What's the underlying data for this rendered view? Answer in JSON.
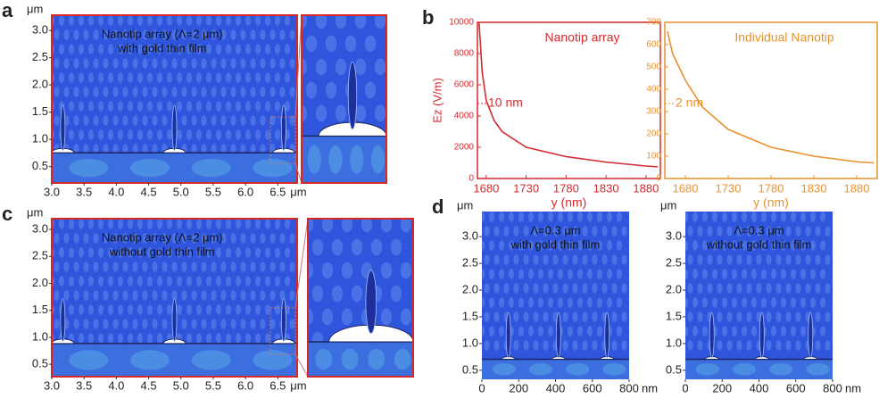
{
  "chart_data": [
    {
      "type": "field-map",
      "panel_label": "a",
      "annotation": [
        "Nanotip array (Λ=2 μm)",
        "with gold thin film"
      ],
      "ylabel": "μm",
      "xlabel": "μm",
      "xlim": [
        3.0,
        6.8
      ],
      "ylim": [
        0.2,
        3.28
      ],
      "xticks": [
        {
          "value": 3,
          "label": "3.0"
        },
        3.5,
        {
          "value": 4,
          "label": "4.0"
        },
        4.5,
        {
          "value": 5,
          "label": "5.0"
        },
        5.5,
        {
          "value": 6,
          "label": "6.0"
        },
        6.5
      ],
      "yticks": [
        0.5,
        {
          "value": 1,
          "label": "1.0"
        },
        1.5,
        {
          "value": 2,
          "label": "2.0"
        },
        2.5,
        {
          "value": 3,
          "label": "3.0"
        }
      ]
    },
    {
      "type": "field-map",
      "panel_label": "c",
      "annotation": [
        "Nanotip array (Λ=2 μm)",
        "without gold thin film"
      ],
      "ylabel": "μm",
      "xlabel": "μm",
      "xlim": [
        3.0,
        6.8
      ],
      "ylim": [
        0.27,
        3.2
      ],
      "xticks": [
        {
          "value": 3,
          "label": "3.0"
        },
        3.5,
        {
          "value": 4,
          "label": "4.0"
        },
        4.5,
        {
          "value": 5,
          "label": "5.0"
        },
        5.5,
        {
          "value": 6,
          "label": "6.0"
        },
        6.5
      ],
      "yticks": [
        0.5,
        {
          "value": 1,
          "label": "1.0"
        },
        1.5,
        {
          "value": 2,
          "label": "2.0"
        },
        2.5,
        {
          "value": 3,
          "label": "3.0"
        }
      ]
    },
    {
      "type": "field-map",
      "panel_label": "d",
      "annotation": [
        "Λ=0.3 μm",
        "with gold thin film"
      ],
      "ylabel": "μm",
      "xlabel": "nm",
      "xlim": [
        0,
        800
      ],
      "ylim": [
        0.33,
        3.47
      ],
      "xticks": [
        0,
        200,
        400,
        600,
        800
      ],
      "yticks": [
        0.5,
        {
          "value": 1,
          "label": "1.0"
        },
        1.5,
        {
          "value": 2,
          "label": "2.0"
        },
        2.5,
        {
          "value": 3,
          "label": "3.0"
        }
      ]
    },
    {
      "type": "field-map",
      "annotation": [
        "Λ=0.3 μm",
        "without gold thin film"
      ],
      "ylabel": "μm",
      "xlabel": "nm",
      "xlim": [
        0,
        800
      ],
      "ylim": [
        0.33,
        3.47
      ],
      "xticks": [
        0,
        200,
        400,
        600,
        800
      ],
      "yticks": [
        0.5,
        {
          "value": 1,
          "label": "1.0"
        },
        1.5,
        {
          "value": 2,
          "label": "2.0"
        },
        2.5,
        {
          "value": 3,
          "label": "3.0"
        }
      ]
    },
    {
      "type": "line",
      "panel_label": "b",
      "title": "Nanotip array",
      "annotation": "10 nm",
      "ylabel": "Ez (V/m)",
      "xlabel": "y (nm)",
      "color": "#d42a2f",
      "xlim": [
        1669,
        1898
      ],
      "ylim": [
        0,
        10000
      ],
      "xticks": [
        1680,
        1730,
        1780,
        1830,
        1880
      ],
      "yticks": [
        0,
        2000,
        4000,
        6000,
        8000,
        10000
      ],
      "x": [
        1671,
        1675,
        1680,
        1690,
        1700,
        1730,
        1780,
        1830,
        1880,
        1895
      ],
      "values": [
        10000,
        6800,
        5000,
        3700,
        3000,
        2000,
        1400,
        1050,
        800,
        750
      ]
    },
    {
      "type": "line",
      "title": "Individual Nanotip",
      "annotation": "2 nm",
      "xlabel": "y (nm)",
      "color": "#e8922e",
      "xlim": [
        1656,
        1904
      ],
      "ylim": [
        0,
        700
      ],
      "xticks": [
        1680,
        1730,
        1780,
        1830,
        1880
      ],
      "yticks": [
        0,
        100,
        200,
        300,
        400,
        500,
        600,
        700
      ],
      "x": [
        1659,
        1665,
        1680,
        1700,
        1730,
        1780,
        1830,
        1880,
        1900
      ],
      "values": [
        660,
        560,
        440,
        320,
        220,
        140,
        100,
        75,
        70
      ]
    }
  ]
}
